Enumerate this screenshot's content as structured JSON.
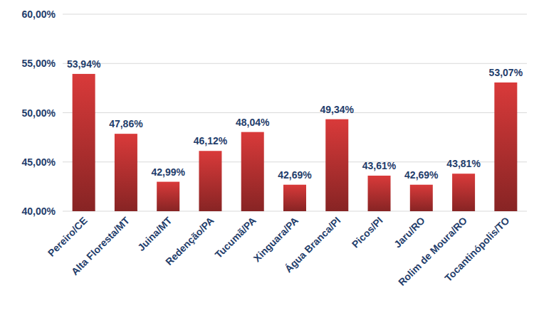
{
  "chart_data": {
    "type": "bar",
    "categories": [
      "Pereiro/CE",
      "Alta Floresta/MT",
      "Juina/MT",
      "Redenção/PA",
      "Tucumã/PA",
      "Xinguara/PA",
      "Água Branca/PI",
      "Picos/PI",
      "Jaru/RO",
      "Rolim de Moura/RO",
      "Tocantinópolis/TO"
    ],
    "values": [
      53.94,
      47.86,
      42.99,
      46.12,
      48.04,
      42.69,
      49.34,
      43.61,
      42.69,
      43.81,
      53.07
    ],
    "value_labels": [
      "53,94%",
      "47,86%",
      "42,99%",
      "46,12%",
      "48,04%",
      "42,69%",
      "49,34%",
      "43,61%",
      "42,69%",
      "43,81%",
      "53,07%"
    ],
    "color": "#d93a3a",
    "ylim": [
      40,
      60
    ],
    "yticks": [
      {
        "value": 40,
        "label": "40,00%"
      },
      {
        "value": 45,
        "label": "45,00%"
      },
      {
        "value": 50,
        "label": "50,00%"
      },
      {
        "value": 55,
        "label": "55,00%"
      },
      {
        "value": 60,
        "label": "60,00%"
      }
    ],
    "grid": true,
    "data_labels": true
  }
}
